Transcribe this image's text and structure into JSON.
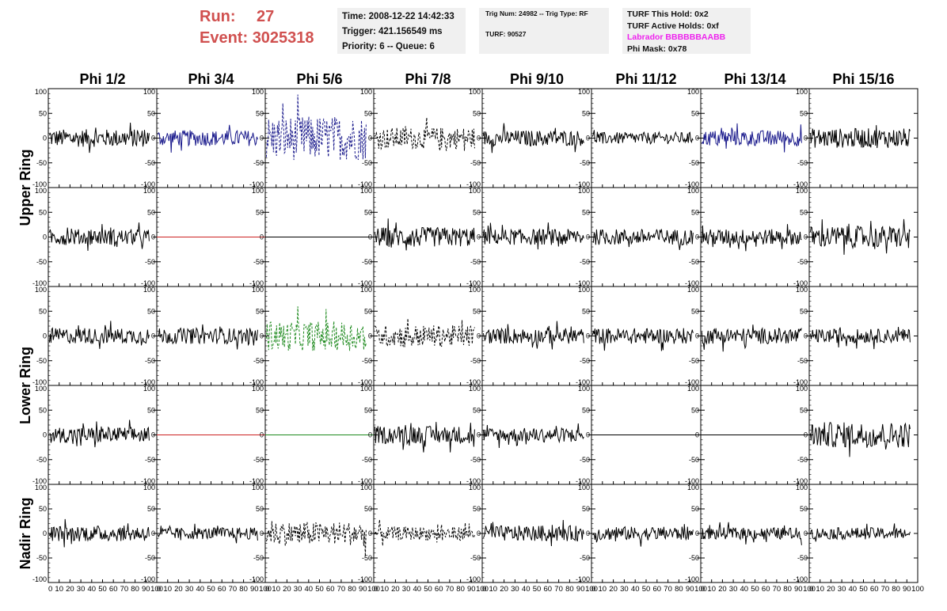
{
  "header": {
    "run_label": "Run:",
    "run_value": "27",
    "event_label": "Event:",
    "event_value": "3025318"
  },
  "info_time": {
    "time": "Time: 2008-12-22 14:42:33",
    "trigger": "Trigger: 421.156549 ms",
    "priority": "Priority: 6 -- Queue: 6"
  },
  "info_trig": {
    "trig_line": "Trig Num: 24982 -- Trig Type: RF",
    "turf_line": "TURF: 90527"
  },
  "info_turf": {
    "this_hold": "TURF This Hold: 0x2",
    "active_holds": "TURF Active Holds: 0xf",
    "labrador": "Labrador BBBBBBAABB",
    "phi_mask": "Phi Mask: 0x78"
  },
  "colors": {
    "accent_red": "#d0504f",
    "magenta": "#ee22ee",
    "trace_black": "#000000",
    "trace_blue": "#1a1a8c",
    "trace_red": "#cc2222",
    "trace_green": "#1e8a1e"
  },
  "chart_data": {
    "type": "line",
    "columns": [
      "Phi 1/2",
      "Phi 3/4",
      "Phi 5/6",
      "Phi 7/8",
      "Phi 9/10",
      "Phi 11/12",
      "Phi 13/14",
      "Phi 15/16"
    ],
    "row_labels": [
      "Upper Ring",
      "Lower Ring",
      "Nadir Ring"
    ],
    "xlim": [
      0,
      100
    ],
    "ylim": [
      -100,
      100
    ],
    "x_ticks": [
      "0",
      "10",
      "20",
      "30",
      "40",
      "50",
      "60",
      "70",
      "80",
      "90",
      "100"
    ],
    "y_ticks": [
      "100",
      "50",
      "0",
      "-50",
      "-100"
    ],
    "rows": [
      [
        {
          "color": "black",
          "style": "solid",
          "amp": 18
        },
        {
          "color": "blue",
          "style": "solid",
          "amp": 16
        },
        {
          "color": "blue",
          "style": "dashed",
          "amp": 45
        },
        {
          "color": "black",
          "style": "dashed",
          "amp": 22
        },
        {
          "color": "black",
          "style": "solid",
          "amp": 16
        },
        {
          "color": "black",
          "style": "solid",
          "amp": 12
        },
        {
          "color": "blue",
          "style": "solid",
          "amp": 16
        },
        {
          "color": "black",
          "style": "solid",
          "amp": 20
        }
      ],
      [
        {
          "color": "black",
          "style": "solid",
          "amp": 16
        },
        {
          "color": "red",
          "style": "flat",
          "amp": 0
        },
        {
          "color": "black",
          "style": "flat",
          "amp": 0
        },
        {
          "color": "black",
          "style": "solid",
          "amp": 20
        },
        {
          "color": "black",
          "style": "solid",
          "amp": 16
        },
        {
          "color": "black",
          "style": "solid",
          "amp": 16
        },
        {
          "color": "black",
          "style": "solid",
          "amp": 16
        },
        {
          "color": "black",
          "style": "solid",
          "amp": 22
        }
      ],
      [
        {
          "color": "black",
          "style": "solid",
          "amp": 16
        },
        {
          "color": "black",
          "style": "solid",
          "amp": 16
        },
        {
          "color": "green",
          "style": "dashed",
          "amp": 30
        },
        {
          "color": "black",
          "style": "dashed",
          "amp": 22
        },
        {
          "color": "black",
          "style": "solid",
          "amp": 16
        },
        {
          "color": "black",
          "style": "solid",
          "amp": 16
        },
        {
          "color": "black",
          "style": "solid",
          "amp": 16
        },
        {
          "color": "black",
          "style": "solid",
          "amp": 14
        }
      ],
      [
        {
          "color": "black",
          "style": "solid",
          "amp": 16
        },
        {
          "color": "red",
          "style": "flat",
          "amp": 0
        },
        {
          "color": "green",
          "style": "flat",
          "amp": 0
        },
        {
          "color": "black",
          "style": "solid",
          "amp": 18
        },
        {
          "color": "black",
          "style": "solid",
          "amp": 14
        },
        {
          "color": "black",
          "style": "flat",
          "amp": 0
        },
        {
          "color": "black",
          "style": "flat",
          "amp": 0
        },
        {
          "color": "black",
          "style": "solid",
          "amp": 26
        }
      ],
      [
        {
          "color": "black",
          "style": "solid",
          "amp": 16
        },
        {
          "color": "black",
          "style": "solid",
          "amp": 12
        },
        {
          "color": "black",
          "style": "dashed",
          "amp": 24
        },
        {
          "color": "black",
          "style": "dashed",
          "amp": 14
        },
        {
          "color": "black",
          "style": "solid",
          "amp": 16
        },
        {
          "color": "black",
          "style": "solid",
          "amp": 14
        },
        {
          "color": "black",
          "style": "solid",
          "amp": 12
        },
        {
          "color": "black",
          "style": "solid",
          "amp": 12
        }
      ]
    ]
  }
}
